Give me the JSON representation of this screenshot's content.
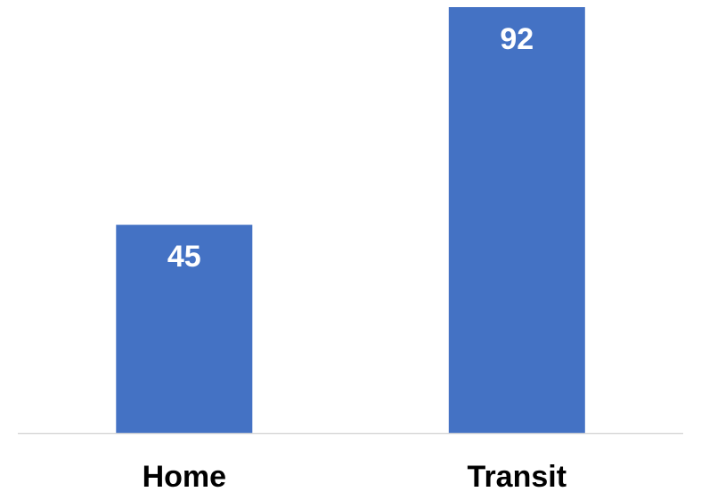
{
  "chart_data": {
    "type": "bar",
    "categories": [
      "Home",
      "Transit"
    ],
    "values": [
      45,
      92
    ],
    "ylim": [
      0,
      92
    ],
    "bar_color": "#4472C4",
    "axis_color": "#D9D9D9",
    "data_labels": true,
    "grid": false,
    "legend": "none",
    "title": "",
    "xlabel": "",
    "ylabel": ""
  }
}
